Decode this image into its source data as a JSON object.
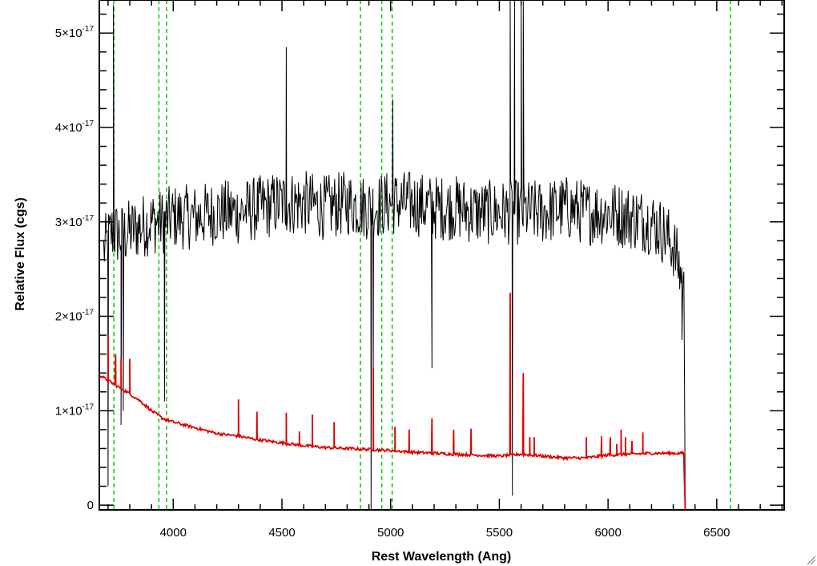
{
  "chart_data": {
    "type": "line",
    "xlabel": "Rest Wavelength (Ang)",
    "ylabel": "Relative Flux (cgs)",
    "xlim": [
      3660,
      6810
    ],
    "ylim": [
      -5e-19,
      5.35e-17
    ],
    "x_ticks": [
      {
        "value": 4000,
        "label": "4000"
      },
      {
        "value": 4500,
        "label": "4500"
      },
      {
        "value": 5000,
        "label": "5000"
      },
      {
        "value": 5500,
        "label": "5500"
      },
      {
        "value": 6000,
        "label": "6000"
      },
      {
        "value": 6500,
        "label": "6500"
      }
    ],
    "y_ticks": [
      {
        "value": 0,
        "label": "0",
        "exponent": ""
      },
      {
        "value": 1e-17,
        "label": "1×10",
        "exponent": "-17"
      },
      {
        "value": 2e-17,
        "label": "2×10",
        "exponent": "-17"
      },
      {
        "value": 3e-17,
        "label": "3×10",
        "exponent": "-17"
      },
      {
        "value": 4e-17,
        "label": "4×10",
        "exponent": "-17"
      },
      {
        "value": 5e-17,
        "label": "5×10",
        "exponent": "-17"
      }
    ],
    "vertical_lines": [
      3727,
      3934,
      3969,
      4861,
      4959,
      5007,
      6563
    ],
    "vertical_line_color": "#00cc00",
    "series": [
      {
        "color": "#000000",
        "continuum_x": [
          3680,
          3700,
          3720,
          3760,
          3800,
          3850,
          3900,
          3950,
          4000,
          4100,
          4200,
          4300,
          4400,
          4500,
          4600,
          4700,
          4800,
          4900,
          5000,
          5100,
          5200,
          5300,
          5400,
          5500,
          5600,
          5700,
          5800,
          5900,
          6000,
          6100,
          6200,
          6250,
          6300,
          6340,
          6350
        ],
        "continuum_y": [
          2.7e-17,
          2.8e-17,
          2.9e-17,
          2.85e-17,
          2.9e-17,
          2.95e-17,
          3e-17,
          3e-17,
          3.05e-17,
          3.05e-17,
          3.1e-17,
          3.1e-17,
          3.15e-17,
          3.2e-17,
          3.2e-17,
          3.15e-17,
          3.2e-17,
          3.15e-17,
          3.2e-17,
          3.2e-17,
          3.15e-17,
          3.15e-17,
          3.1e-17,
          3.1e-17,
          3.1e-17,
          3.1e-17,
          3.15e-17,
          3.1e-17,
          3.1e-17,
          3.05e-17,
          3e-17,
          2.9e-17,
          2.75e-17,
          2.4e-17,
          2.2e-17
        ],
        "noise": 3.5e-18,
        "spikes_x": [
          3700,
          3725,
          3760,
          3770,
          3960,
          4520,
          4910,
          4920,
          5010,
          5190,
          5550,
          5560,
          5570,
          5600,
          5610,
          6340
        ],
        "spikes_y": [
          2e-18,
          5.3e-17,
          8.5e-18,
          1e-17,
          1.1e-17,
          4.85e-17,
          -5e-19,
          1.1e-17,
          4.3e-17,
          1.45e-17,
          5.4e-17,
          1e-18,
          5.4e-17,
          5.4e-17,
          5.4e-17,
          1.75e-17
        ],
        "drop_x": 6355,
        "drop_y": -5e-19
      },
      {
        "color": "#dd0000",
        "continuum_x": [
          3660,
          3700,
          3750,
          3800,
          3850,
          3900,
          3950,
          4000,
          4100,
          4200,
          4300,
          4400,
          4500,
          4600,
          4700,
          4800,
          4900,
          5000,
          5100,
          5200,
          5300,
          5400,
          5500,
          5600,
          5700,
          5800,
          5900,
          6000,
          6100,
          6200,
          6300,
          6350
        ],
        "continuum_y": [
          1.38e-17,
          1.32e-17,
          1.25e-17,
          1.18e-17,
          1.1e-17,
          1e-17,
          9.2e-18,
          8.8e-18,
          8.2e-18,
          7.6e-18,
          7.3e-18,
          6.9e-18,
          6.6e-18,
          6.3e-18,
          6.1e-18,
          6e-18,
          5.9e-18,
          5.8e-18,
          5.6e-18,
          5.5e-18,
          5.4e-18,
          5.3e-18,
          5.2e-18,
          5.4e-18,
          5.2e-18,
          5e-18,
          5e-18,
          5.3e-18,
          5.4e-18,
          5.5e-18,
          5.5e-18,
          5.5e-18
        ],
        "lines_x": [
          3700,
          3735,
          3760,
          3800,
          4300,
          4385,
          4520,
          4580,
          4640,
          4740,
          4920,
          5020,
          5085,
          5190,
          5290,
          5370,
          5550,
          5610,
          5640,
          5660,
          5900,
          5970,
          6010,
          6040,
          6060,
          6080,
          6110,
          6160
        ],
        "lines_y": [
          1.8e-17,
          1.6e-17,
          1.55e-17,
          1.55e-17,
          1.12e-17,
          9.9e-18,
          9.8e-18,
          7.8e-18,
          9.6e-18,
          8.8e-18,
          1.45e-17,
          8.3e-18,
          8e-18,
          9.2e-18,
          8e-18,
          8.1e-18,
          2.25e-17,
          1.4e-17,
          7.2e-18,
          7.2e-18,
          7.2e-18,
          7.3e-18,
          7.2e-18,
          6.5e-18,
          8e-18,
          7.2e-18,
          6.8e-18,
          7.7e-18
        ],
        "drop_x": 6355,
        "drop_y": -5e-19
      }
    ]
  }
}
